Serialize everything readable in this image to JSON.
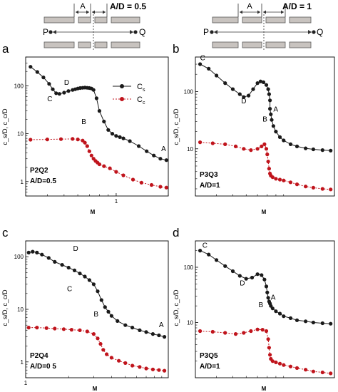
{
  "colors": {
    "cs": "#1a1a1a",
    "cc": "#c0141c",
    "bar_fill": "#c8c3bf",
    "bar_stroke": "#5a5a5a"
  },
  "schematics": [
    {
      "left_label": "P",
      "right_label": "Q",
      "gap_label": "A",
      "ratio_label": "A/D = 0.5"
    },
    {
      "left_label": "P",
      "right_label": "Q",
      "gap_label": "A",
      "ratio_label": "A/D = 1"
    }
  ],
  "legend": {
    "cs_label": "C",
    "cs_sub": "s",
    "cc_label": "C",
    "cc_sub": "c"
  },
  "chart_data": [
    {
      "type": "line",
      "panel_letter": "a",
      "sample_label": "P2Q2",
      "ratio_label": "A/D=0.5",
      "xlabel": "M",
      "ylabel": "c_s/D, c_c/D",
      "x_scale": "log",
      "y_scale": "log",
      "xlim": [
        0.3,
        2.0
      ],
      "ylim": [
        0.5,
        400
      ],
      "x_ticks": [
        1
      ],
      "x_tick_labels": [
        "1"
      ],
      "y_ticks": [
        1,
        10,
        100
      ],
      "y_tick_labels": [
        "1",
        "10",
        "100"
      ],
      "series": [
        {
          "name": "Cs",
          "key": "cs",
          "x": [
            0.32,
            0.35,
            0.38,
            0.41,
            0.43,
            0.45,
            0.47,
            0.5,
            0.53,
            0.56,
            0.58,
            0.6,
            0.62,
            0.64,
            0.66,
            0.68,
            0.7,
            0.72,
            0.74,
            0.77,
            0.8,
            0.85,
            0.9,
            0.95,
            1.0,
            1.05,
            1.1,
            1.2,
            1.35,
            1.5,
            1.65,
            1.8,
            1.95
          ],
          "y": [
            250,
            195,
            150,
            110,
            85,
            70,
            68,
            72,
            78,
            82,
            85,
            88,
            90,
            91,
            92,
            91,
            90,
            88,
            82,
            55,
            30,
            18,
            12,
            10,
            9,
            8.5,
            8,
            7,
            5.5,
            4.3,
            3.5,
            3.0,
            2.8
          ]
        },
        {
          "name": "Cc",
          "key": "cc",
          "x": [
            0.32,
            0.4,
            0.48,
            0.56,
            0.6,
            0.64,
            0.66,
            0.68,
            0.7,
            0.72,
            0.74,
            0.76,
            0.78,
            0.8,
            0.85,
            0.92,
            1.0,
            1.1,
            1.25,
            1.4,
            1.6,
            1.8,
            1.95
          ],
          "y": [
            7.5,
            7.6,
            7.7,
            7.8,
            7.6,
            7.2,
            6.5,
            5.5,
            4.3,
            3.5,
            3.0,
            2.7,
            2.5,
            2.3,
            2.1,
            1.9,
            1.6,
            1.35,
            1.1,
            0.95,
            0.85,
            0.78,
            0.75
          ]
        }
      ],
      "annotations": [
        {
          "text": "A",
          "x": 1.82,
          "y": 4.3
        },
        {
          "text": "B",
          "x": 0.63,
          "y": 16
        },
        {
          "text": "C",
          "x": 0.4,
          "y": 48
        },
        {
          "text": "D",
          "x": 0.5,
          "y": 105
        }
      ]
    },
    {
      "type": "line",
      "panel_letter": "b",
      "sample_label": "P3Q3",
      "ratio_label": "A/D=1",
      "xlabel": "M",
      "ylabel": "c_s/D, c_c/D",
      "x_scale": "log",
      "y_scale": "log",
      "xlim": [
        0.3,
        2.0
      ],
      "ylim": [
        1.5,
        400
      ],
      "x_ticks": [],
      "x_tick_labels": [],
      "y_ticks": [
        10,
        100
      ],
      "y_tick_labels": [
        "10",
        "100"
      ],
      "series": [
        {
          "name": "Cs",
          "key": "cs",
          "x": [
            0.32,
            0.36,
            0.4,
            0.45,
            0.5,
            0.55,
            0.58,
            0.62,
            0.66,
            0.7,
            0.73,
            0.76,
            0.79,
            0.81,
            0.82,
            0.83,
            0.83,
            0.84,
            0.85,
            0.87,
            0.9,
            0.95,
            1.0,
            1.1,
            1.2,
            1.35,
            1.5,
            1.7,
            1.9
          ],
          "y": [
            300,
            250,
            190,
            140,
            110,
            90,
            80,
            85,
            110,
            140,
            150,
            145,
            130,
            110,
            90,
            70,
            50,
            40,
            32,
            25,
            20,
            16,
            14,
            12,
            11,
            10.2,
            9.8,
            9.5,
            9.3
          ]
        },
        {
          "name": "Cc",
          "key": "cc",
          "x": [
            0.32,
            0.38,
            0.45,
            0.52,
            0.58,
            0.64,
            0.7,
            0.74,
            0.77,
            0.79,
            0.8,
            0.81,
            0.82,
            0.83,
            0.84,
            0.86,
            0.9,
            0.95,
            1.0,
            1.1,
            1.2,
            1.35,
            1.5,
            1.7,
            1.9
          ],
          "y": [
            13,
            12.5,
            12,
            11,
            10,
            9.5,
            10,
            11,
            12,
            10,
            8,
            6,
            4.5,
            3.7,
            3.4,
            3.2,
            3.0,
            2.9,
            2.8,
            2.6,
            2.4,
            2.2,
            2.1,
            2.0,
            1.95
          ]
        }
      ],
      "annotations": [
        {
          "text": "A",
          "x": 0.87,
          "y": 45
        },
        {
          "text": "B",
          "x": 0.75,
          "y": 30
        },
        {
          "text": "C",
          "x": 0.32,
          "y": 350
        },
        {
          "text": "D",
          "x": 0.56,
          "y": 62
        }
      ]
    },
    {
      "type": "line",
      "panel_letter": "c",
      "sample_label": "P2Q4",
      "ratio_label": "A/D=0 5",
      "xlabel": "M",
      "ylabel": "c_s/D, c_c/D",
      "x_scale": "log",
      "y_scale": "log",
      "xlim": [
        1,
        10
      ],
      "ylim": [
        0.5,
        200
      ],
      "x_ticks": [
        1
      ],
      "x_tick_labels": [
        "1"
      ],
      "y_ticks": [
        1,
        10,
        100
      ],
      "y_tick_labels": [
        "1",
        "10",
        "100"
      ],
      "series": [
        {
          "name": "Cs",
          "key": "cs",
          "x": [
            1.05,
            1.12,
            1.2,
            1.3,
            1.45,
            1.6,
            1.8,
            2.0,
            2.2,
            2.4,
            2.6,
            2.8,
            3.0,
            3.2,
            3.4,
            3.6,
            3.8,
            4.0,
            4.4,
            5.0,
            5.6,
            6.3,
            7.0,
            7.8,
            8.6,
            9.4
          ],
          "y": [
            120,
            125,
            120,
            110,
            95,
            80,
            70,
            62,
            55,
            48,
            42,
            36,
            30,
            22,
            15,
            11,
            9,
            7.5,
            6,
            5,
            4.5,
            4,
            3.7,
            3.4,
            3.2,
            3.0
          ]
        },
        {
          "name": "Cc",
          "key": "cc",
          "x": [
            1.05,
            1.2,
            1.4,
            1.6,
            1.85,
            2.1,
            2.4,
            2.7,
            3.0,
            3.2,
            3.35,
            3.5,
            3.7,
            4.0,
            4.5,
            5.0,
            5.6,
            6.3,
            7.0,
            7.8,
            8.6,
            9.4
          ],
          "y": [
            4.5,
            4.5,
            4.4,
            4.3,
            4.2,
            4.1,
            4.0,
            3.8,
            3.4,
            2.8,
            2.2,
            1.7,
            1.4,
            1.2,
            1.05,
            0.95,
            0.85,
            0.8,
            0.75,
            0.72,
            0.7,
            0.68
          ]
        }
      ],
      "annotations": [
        {
          "text": "A",
          "x": 8.6,
          "y": 4.6
        },
        {
          "text": "B",
          "x": 3.0,
          "y": 7.3
        },
        {
          "text": "C",
          "x": 1.95,
          "y": 22
        },
        {
          "text": "D",
          "x": 2.15,
          "y": 130
        }
      ]
    },
    {
      "type": "line",
      "panel_letter": "d",
      "sample_label": "P3Q5",
      "ratio_label": "A/D=1",
      "xlabel": "M",
      "ylabel": "c_s/D, c_c/D",
      "x_scale": "log",
      "y_scale": "log",
      "xlim": [
        0.3,
        2.0
      ],
      "ylim": [
        1,
        300
      ],
      "x_ticks": [],
      "x_tick_labels": [],
      "y_ticks": [
        10,
        100
      ],
      "y_tick_labels": [
        "10",
        "100"
      ],
      "series": [
        {
          "name": "Cs",
          "key": "cs",
          "x": [
            0.32,
            0.36,
            0.4,
            0.45,
            0.5,
            0.55,
            0.6,
            0.65,
            0.7,
            0.74,
            0.77,
            0.79,
            0.8,
            0.81,
            0.82,
            0.83,
            0.84,
            0.86,
            0.9,
            0.95,
            1.0,
            1.1,
            1.2,
            1.35,
            1.5,
            1.7,
            1.9
          ],
          "y": [
            200,
            170,
            135,
            105,
            85,
            70,
            62,
            65,
            75,
            72,
            60,
            45,
            35,
            28,
            24,
            22,
            20,
            18,
            16,
            14.5,
            13,
            12,
            11,
            10.5,
            10,
            9.7,
            9.5
          ]
        },
        {
          "name": "Cc",
          "key": "cc",
          "x": [
            0.32,
            0.38,
            0.45,
            0.52,
            0.58,
            0.64,
            0.7,
            0.75,
            0.79,
            0.81,
            0.82,
            0.83,
            0.84,
            0.86,
            0.9,
            0.95,
            1.0,
            1.1,
            1.2,
            1.35,
            1.5,
            1.7,
            1.9
          ],
          "y": [
            7.0,
            6.8,
            6.5,
            6.2,
            6.5,
            7.0,
            7.5,
            7.4,
            7.0,
            5.0,
            3.5,
            2.6,
            2.2,
            2.0,
            1.9,
            1.8,
            1.7,
            1.6,
            1.5,
            1.4,
            1.3,
            1.25,
            1.2
          ]
        }
      ],
      "annotations": [
        {
          "text": "A",
          "x": 0.84,
          "y": 26
        },
        {
          "text": "B",
          "x": 0.71,
          "y": 19
        },
        {
          "text": "C",
          "x": 0.33,
          "y": 225
        },
        {
          "text": "D",
          "x": 0.55,
          "y": 47
        }
      ]
    }
  ]
}
